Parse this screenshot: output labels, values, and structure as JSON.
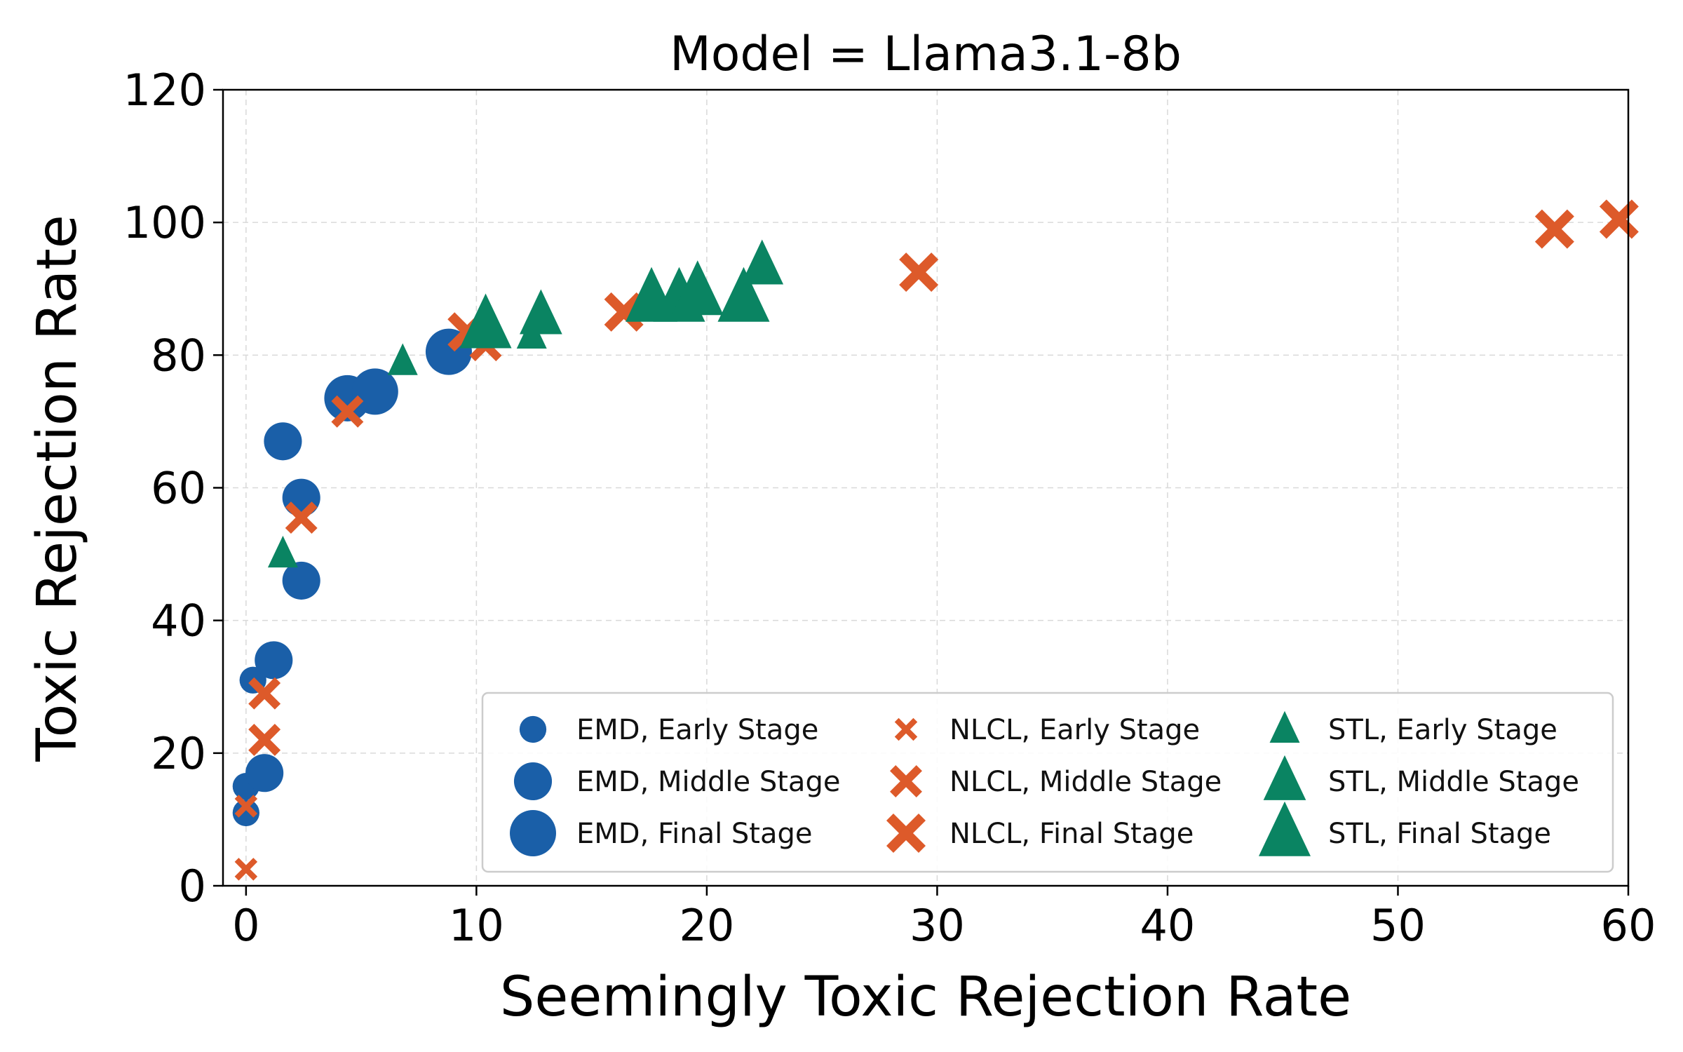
{
  "chart_data": {
    "type": "scatter",
    "title": "Model = Llama3.1-8b",
    "xlabel": "Seemingly Toxic Rejection Rate",
    "ylabel": "Toxic Rejection Rate",
    "xlim": [
      -1,
      60
    ],
    "ylim": [
      0,
      120
    ],
    "xticks": [
      0,
      10,
      20,
      30,
      40,
      50,
      60
    ],
    "yticks": [
      0,
      20,
      40,
      60,
      80,
      100,
      120
    ],
    "grid": true,
    "legend_position": "lower-right",
    "colors": {
      "EMD": "#1a5fa8",
      "NLCL": "#dd5a2a",
      "STL": "#0a8462"
    },
    "series": [
      {
        "name": "EMD, Early Stage",
        "method": "EMD",
        "stage": "Early",
        "marker": "circle",
        "points": [
          [
            0,
            11
          ],
          [
            0,
            15
          ],
          [
            0.3,
            31
          ]
        ]
      },
      {
        "name": "EMD, Middle Stage",
        "method": "EMD",
        "stage": "Middle",
        "marker": "circle",
        "points": [
          [
            0.8,
            17
          ],
          [
            1.2,
            34
          ],
          [
            2.4,
            46
          ],
          [
            2.4,
            58.5
          ],
          [
            1.6,
            67
          ]
        ]
      },
      {
        "name": "EMD, Final Stage",
        "method": "EMD",
        "stage": "Final",
        "marker": "circle",
        "points": [
          [
            4.4,
            73.5
          ],
          [
            5.6,
            74.5
          ],
          [
            8.8,
            80.5
          ]
        ]
      },
      {
        "name": "NLCL, Early Stage",
        "method": "NLCL",
        "stage": "Early",
        "marker": "x",
        "points": [
          [
            0,
            2.5
          ],
          [
            0,
            12
          ]
        ]
      },
      {
        "name": "NLCL, Middle Stage",
        "method": "NLCL",
        "stage": "Middle",
        "marker": "x",
        "points": [
          [
            0.8,
            22
          ],
          [
            0.8,
            29
          ],
          [
            2.4,
            55.5
          ],
          [
            4.4,
            71.5
          ],
          [
            10.4,
            81.5
          ]
        ]
      },
      {
        "name": "NLCL, Final Stage",
        "method": "NLCL",
        "stage": "Final",
        "marker": "x",
        "points": [
          [
            9.6,
            83.5
          ],
          [
            16.4,
            86.5
          ],
          [
            29.2,
            92.5
          ],
          [
            56.8,
            99
          ],
          [
            59.6,
            100.5
          ]
        ]
      },
      {
        "name": "STL, Early Stage",
        "method": "STL",
        "stage": "Early",
        "marker": "triangle",
        "points": [
          [
            1.6,
            50
          ],
          [
            6.8,
            79
          ],
          [
            12.4,
            83
          ]
        ]
      },
      {
        "name": "STL, Middle Stage",
        "method": "STL",
        "stage": "Middle",
        "marker": "triangle",
        "points": [
          [
            12.8,
            86
          ],
          [
            22.4,
            93.5
          ]
        ]
      },
      {
        "name": "STL, Final Stage",
        "method": "STL",
        "stage": "Final",
        "marker": "triangle",
        "points": [
          [
            10.4,
            84.5
          ],
          [
            17.6,
            88.5
          ],
          [
            18.8,
            88.5
          ],
          [
            19.6,
            89.5
          ],
          [
            21.6,
            88.5
          ]
        ]
      }
    ]
  }
}
